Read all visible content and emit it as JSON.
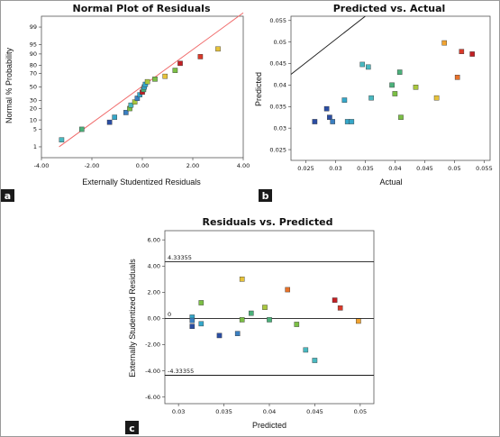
{
  "colors": {
    "ref_line_a": "#f06a6a",
    "ref_line_b": "#1a1a1a",
    "h_lines_c": "#1a1a1a",
    "badge_bg": "#1a1a1a",
    "frame": "#9a9a9a",
    "palette": [
      "#2b4ea3",
      "#3a7fc1",
      "#35a7c9",
      "#49b8c0",
      "#4bb07a",
      "#7bbf45",
      "#aac83e",
      "#e6c23a",
      "#f0a331",
      "#e8722a",
      "#d93a2a",
      "#c21f24"
    ]
  },
  "chart_data": [
    {
      "panel": "a",
      "type": "scatter",
      "title": "Normal Plot of Residuals",
      "xlabel": "Externally Studentized Residuals",
      "ylabel": "Normal % Probability",
      "xlim": [
        -4.0,
        4.0
      ],
      "xticks": [
        "-4.00",
        "-2.00",
        "0.00",
        "2.00",
        "4.00"
      ],
      "ytick_labels": [
        "1",
        "5",
        "10",
        "20",
        "30",
        "50",
        "70",
        "80",
        "90",
        "95",
        "99"
      ],
      "yscale": "normal-probability",
      "ref_line": {
        "from": [
          -3.3,
          1
        ],
        "to": [
          4.0,
          99.8
        ]
      },
      "points": [
        {
          "x": -3.2,
          "y": 2.0,
          "c": 3
        },
        {
          "x": -2.4,
          "y": 5.0,
          "c": 4
        },
        {
          "x": -1.3,
          "y": 8.5,
          "c": 0
        },
        {
          "x": -1.1,
          "y": 12.0,
          "c": 2
        },
        {
          "x": -0.65,
          "y": 16.0,
          "c": 1
        },
        {
          "x": -0.5,
          "y": 20.0,
          "c": 5
        },
        {
          "x": -0.45,
          "y": 24.0,
          "c": 3
        },
        {
          "x": -0.3,
          "y": 28.0,
          "c": 6
        },
        {
          "x": -0.2,
          "y": 33.0,
          "c": 1
        },
        {
          "x": -0.1,
          "y": 38.0,
          "c": 2
        },
        {
          "x": 0.0,
          "y": 42.0,
          "c": 11
        },
        {
          "x": 0.05,
          "y": 46.0,
          "c": 4
        },
        {
          "x": 0.08,
          "y": 50.0,
          "c": 2
        },
        {
          "x": 0.12,
          "y": 54.0,
          "c": 2
        },
        {
          "x": 0.2,
          "y": 58.0,
          "c": 6
        },
        {
          "x": 0.5,
          "y": 62.0,
          "c": 5
        },
        {
          "x": 0.9,
          "y": 66.0,
          "c": 7
        },
        {
          "x": 1.3,
          "y": 74.0,
          "c": 5
        },
        {
          "x": 1.5,
          "y": 82.0,
          "c": 11
        },
        {
          "x": 2.3,
          "y": 88.0,
          "c": 10
        },
        {
          "x": 3.0,
          "y": 93.0,
          "c": 7
        }
      ]
    },
    {
      "panel": "b",
      "type": "scatter",
      "title": "Predicted vs. Actual",
      "xlabel": "Actual",
      "ylabel": "Predicted",
      "xlim": [
        0.0225,
        0.056
      ],
      "ylim": [
        0.0225,
        0.056
      ],
      "xticks": [
        "0.025",
        "0.03",
        "0.035",
        "0.04",
        "0.045",
        "0.05",
        "0.055"
      ],
      "yticks": [
        "0.025",
        "0.03",
        "0.035",
        "0.04",
        "0.045",
        "0.05",
        "0.055"
      ],
      "ref_line": {
        "from": [
          0.0225,
          0.0425
        ],
        "to": [
          0.035,
          0.056
        ]
      },
      "points": [
        {
          "x": 0.0265,
          "y": 0.0315,
          "c": 0
        },
        {
          "x": 0.0285,
          "y": 0.0345,
          "c": 0
        },
        {
          "x": 0.029,
          "y": 0.0325,
          "c": 0
        },
        {
          "x": 0.0295,
          "y": 0.0315,
          "c": 1
        },
        {
          "x": 0.0315,
          "y": 0.0365,
          "c": 2
        },
        {
          "x": 0.032,
          "y": 0.0315,
          "c": 2
        },
        {
          "x": 0.0327,
          "y": 0.0315,
          "c": 2
        },
        {
          "x": 0.0345,
          "y": 0.0448,
          "c": 3
        },
        {
          "x": 0.0355,
          "y": 0.0442,
          "c": 3
        },
        {
          "x": 0.036,
          "y": 0.037,
          "c": 3
        },
        {
          "x": 0.0395,
          "y": 0.04,
          "c": 4
        },
        {
          "x": 0.04,
          "y": 0.038,
          "c": 5
        },
        {
          "x": 0.0408,
          "y": 0.043,
          "c": 4
        },
        {
          "x": 0.041,
          "y": 0.0325,
          "c": 5
        },
        {
          "x": 0.0435,
          "y": 0.0395,
          "c": 6
        },
        {
          "x": 0.047,
          "y": 0.037,
          "c": 7
        },
        {
          "x": 0.0483,
          "y": 0.0498,
          "c": 8
        },
        {
          "x": 0.0505,
          "y": 0.0418,
          "c": 9
        },
        {
          "x": 0.0512,
          "y": 0.0478,
          "c": 10
        },
        {
          "x": 0.053,
          "y": 0.0472,
          "c": 11
        }
      ]
    },
    {
      "panel": "c",
      "type": "scatter",
      "title": "Residuals vs. Predicted",
      "xlabel": "Predicted",
      "ylabel": "Externally Studentized Residuals",
      "xlim": [
        0.0285,
        0.0515
      ],
      "ylim": [
        -6.5,
        6.7
      ],
      "xticks": [
        "0.03",
        "0.035",
        "0.04",
        "0.045",
        "0.05"
      ],
      "yticks": [
        "-6.00",
        "-4.00",
        "-2.00",
        "0.00",
        "2.00",
        "4.00",
        "6.00"
      ],
      "hlines": [
        {
          "y": 4.33355,
          "label": "4.33355"
        },
        {
          "y": 0,
          "label": "0"
        },
        {
          "y": -4.33355,
          "label": "-4.33355"
        }
      ],
      "points": [
        {
          "x": 0.0315,
          "y": 0.1,
          "c": 2
        },
        {
          "x": 0.0315,
          "y": -0.15,
          "c": 1
        },
        {
          "x": 0.0315,
          "y": -0.6,
          "c": 0
        },
        {
          "x": 0.0325,
          "y": -0.4,
          "c": 2
        },
        {
          "x": 0.0325,
          "y": 1.2,
          "c": 5
        },
        {
          "x": 0.0345,
          "y": -1.3,
          "c": 0
        },
        {
          "x": 0.0365,
          "y": -1.15,
          "c": 1
        },
        {
          "x": 0.037,
          "y": -0.1,
          "c": 5
        },
        {
          "x": 0.037,
          "y": 3.0,
          "c": 7
        },
        {
          "x": 0.038,
          "y": 0.4,
          "c": 4
        },
        {
          "x": 0.0395,
          "y": 0.85,
          "c": 6
        },
        {
          "x": 0.04,
          "y": -0.1,
          "c": 4
        },
        {
          "x": 0.042,
          "y": 2.2,
          "c": 9
        },
        {
          "x": 0.043,
          "y": -0.45,
          "c": 5
        },
        {
          "x": 0.044,
          "y": -2.4,
          "c": 3
        },
        {
          "x": 0.045,
          "y": -3.2,
          "c": 3
        },
        {
          "x": 0.0472,
          "y": 1.4,
          "c": 11
        },
        {
          "x": 0.0478,
          "y": 0.8,
          "c": 10
        },
        {
          "x": 0.0498,
          "y": -0.2,
          "c": 8
        }
      ]
    }
  ]
}
